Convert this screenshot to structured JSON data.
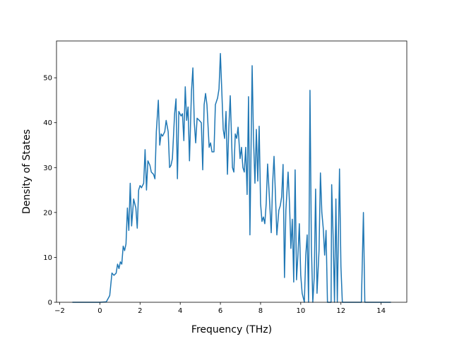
{
  "chart_data": {
    "type": "line",
    "x_label": "Frequency (THz)",
    "y_label": "Density of States",
    "x": [
      -1.37,
      0,
      0.32,
      0.49,
      0.6,
      0.7,
      0.81,
      0.88,
      0.95,
      1.02,
      1.09,
      1.16,
      1.23,
      1.3,
      1.37,
      1.44,
      1.51,
      1.58,
      1.68,
      1.79,
      1.86,
      1.93,
      2.0,
      2.07,
      2.18,
      2.25,
      2.32,
      2.39,
      2.49,
      2.56,
      2.67,
      2.74,
      2.81,
      2.91,
      2.98,
      3.05,
      3.12,
      3.23,
      3.3,
      3.4,
      3.47,
      3.54,
      3.61,
      3.72,
      3.79,
      3.86,
      3.93,
      4.04,
      4.11,
      4.18,
      4.25,
      4.32,
      4.39,
      4.46,
      4.56,
      4.63,
      4.7,
      4.77,
      4.84,
      4.95,
      5.05,
      5.12,
      5.19,
      5.26,
      5.33,
      5.44,
      5.51,
      5.58,
      5.68,
      5.75,
      5.86,
      5.93,
      6.0,
      6.07,
      6.14,
      6.21,
      6.28,
      6.35,
      6.42,
      6.49,
      6.6,
      6.67,
      6.74,
      6.81,
      6.88,
      6.98,
      7.05,
      7.12,
      7.19,
      7.26,
      7.33,
      7.4,
      7.47,
      7.58,
      7.65,
      7.72,
      7.79,
      7.86,
      7.93,
      8.0,
      8.07,
      8.14,
      8.21,
      8.28,
      8.35,
      8.42,
      8.53,
      8.6,
      8.67,
      8.74,
      8.81,
      8.91,
      8.98,
      9.05,
      9.12,
      9.19,
      9.26,
      9.37,
      9.44,
      9.51,
      9.58,
      9.65,
      9.72,
      9.79,
      9.86,
      9.93,
      10.0,
      10.07,
      10.18,
      10.25,
      10.32,
      10.39,
      10.46,
      10.53,
      10.6,
      10.67,
      10.74,
      10.81,
      10.91,
      10.98,
      11.05,
      11.12,
      11.19,
      11.26,
      11.33,
      11.4,
      11.51,
      11.54,
      11.61,
      11.68,
      11.75,
      11.82,
      11.93,
      12.0,
      12.07,
      13.02,
      13.12,
      13.19,
      14.49
    ],
    "series": [
      {
        "color": "#1f77b4",
        "values": [
          0,
          0,
          0.1,
          1.5,
          6.5,
          6,
          6.5,
          8.5,
          7.5,
          9,
          8.5,
          12.5,
          11.5,
          13,
          21,
          16,
          26.5,
          17,
          23,
          21,
          16.5,
          25,
          26,
          25.5,
          26.5,
          34,
          25,
          31.5,
          30.5,
          29,
          28.5,
          27.5,
          38,
          45,
          35,
          37.5,
          37,
          38,
          40.5,
          38,
          30,
          30.5,
          32,
          42,
          45.3,
          27.5,
          42.5,
          41.5,
          42,
          36,
          48,
          40.5,
          43.5,
          31.5,
          47,
          52.2,
          40,
          35.5,
          41,
          40.5,
          40,
          29.5,
          44,
          46.5,
          44,
          34.5,
          35.5,
          33.5,
          33.5,
          44,
          45.5,
          47.5,
          55.4,
          47,
          38.5,
          36.5,
          42.5,
          28.5,
          39,
          46,
          30,
          29,
          37.5,
          36.5,
          39,
          32,
          34.5,
          30,
          29,
          34.5,
          24,
          45.8,
          15,
          52.7,
          36,
          26.5,
          38.5,
          27,
          39.2,
          22,
          18,
          19,
          17.5,
          22,
          30.8,
          25,
          15.5,
          26.5,
          32.5,
          24,
          15,
          20.5,
          21.5,
          23.5,
          30.7,
          5.5,
          20.5,
          29,
          22,
          12,
          18.5,
          4.5,
          29.5,
          5,
          10.5,
          17.5,
          6,
          2,
          0,
          10.5,
          15,
          0,
          47.2,
          12.5,
          0,
          5.5,
          25.2,
          2,
          11.5,
          28.8,
          20,
          16.5,
          10.5,
          16,
          0,
          0,
          0,
          26.2,
          15,
          0,
          23,
          0,
          29.7,
          8,
          0,
          0,
          20,
          0,
          0
        ]
      }
    ],
    "xlim": [
      -2.16,
      15.28
    ],
    "xticks": [
      {
        "value": -2,
        "label": "−2"
      },
      0,
      2,
      4,
      6,
      8,
      10,
      12,
      14
    ],
    "ylim": [
      0,
      58.2
    ],
    "yticks": [
      0,
      10,
      20,
      30,
      40,
      50
    ]
  }
}
